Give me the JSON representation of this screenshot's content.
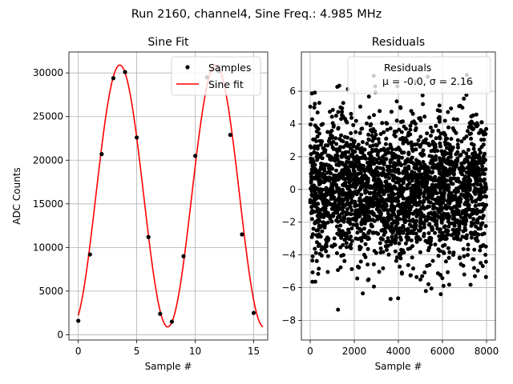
{
  "figure": {
    "suptitle": "Run 2160, channel4, Sine Freq.: 4.985 MHz"
  },
  "chart_data": [
    {
      "type": "scatter+line",
      "title": "Sine Fit",
      "xlabel": "Sample #",
      "ylabel": "ADC Counts",
      "xlim": [
        -0.8,
        16.2
      ],
      "ylim": [
        -600,
        32400
      ],
      "xticks": [
        0,
        5,
        10,
        15
      ],
      "yticks": [
        0,
        5000,
        10000,
        15000,
        20000,
        25000,
        30000
      ],
      "grid": true,
      "legend_position": "top-right",
      "series": [
        {
          "name": "Samples",
          "style": "points",
          "color": "#000000",
          "x": [
            0,
            1,
            2,
            3,
            4,
            5,
            6,
            7,
            8,
            9,
            10,
            11,
            12,
            13,
            14,
            15
          ],
          "y": [
            1600,
            9200,
            20700,
            29400,
            30100,
            22600,
            11200,
            2400,
            1500,
            9000,
            20500,
            29500,
            30200,
            22900,
            11500,
            2500
          ]
        },
        {
          "name": "Sine fit",
          "style": "line",
          "color": "#ff0000",
          "model": {
            "amplitude": 15000,
            "offset": 15900,
            "period": 8.2,
            "peak_x": 3.55,
            "x_start": 0,
            "x_end": 15.8
          }
        }
      ]
    },
    {
      "type": "scatter",
      "title": "Residuals",
      "xlabel": "Sample #",
      "ylabel": "",
      "xlim": [
        -400,
        8400
      ],
      "ylim": [
        -9.2,
        8.4
      ],
      "xticks": [
        0,
        2000,
        4000,
        6000,
        8000
      ],
      "yticks": [
        -8,
        -6,
        -4,
        -2,
        0,
        2,
        4,
        6
      ],
      "grid": true,
      "legend_position": "top-right",
      "series": [
        {
          "name": "Residuals",
          "color": "#000000",
          "n_points": 8000,
          "mean": -0.0,
          "sigma": 2.16,
          "x_range": [
            0,
            8000
          ],
          "y_range_observed": [
            -8.6,
            7.3
          ]
        }
      ],
      "legend": {
        "line1": "Residuals",
        "line2": "μ = -0.0, σ = 2.16"
      }
    }
  ]
}
